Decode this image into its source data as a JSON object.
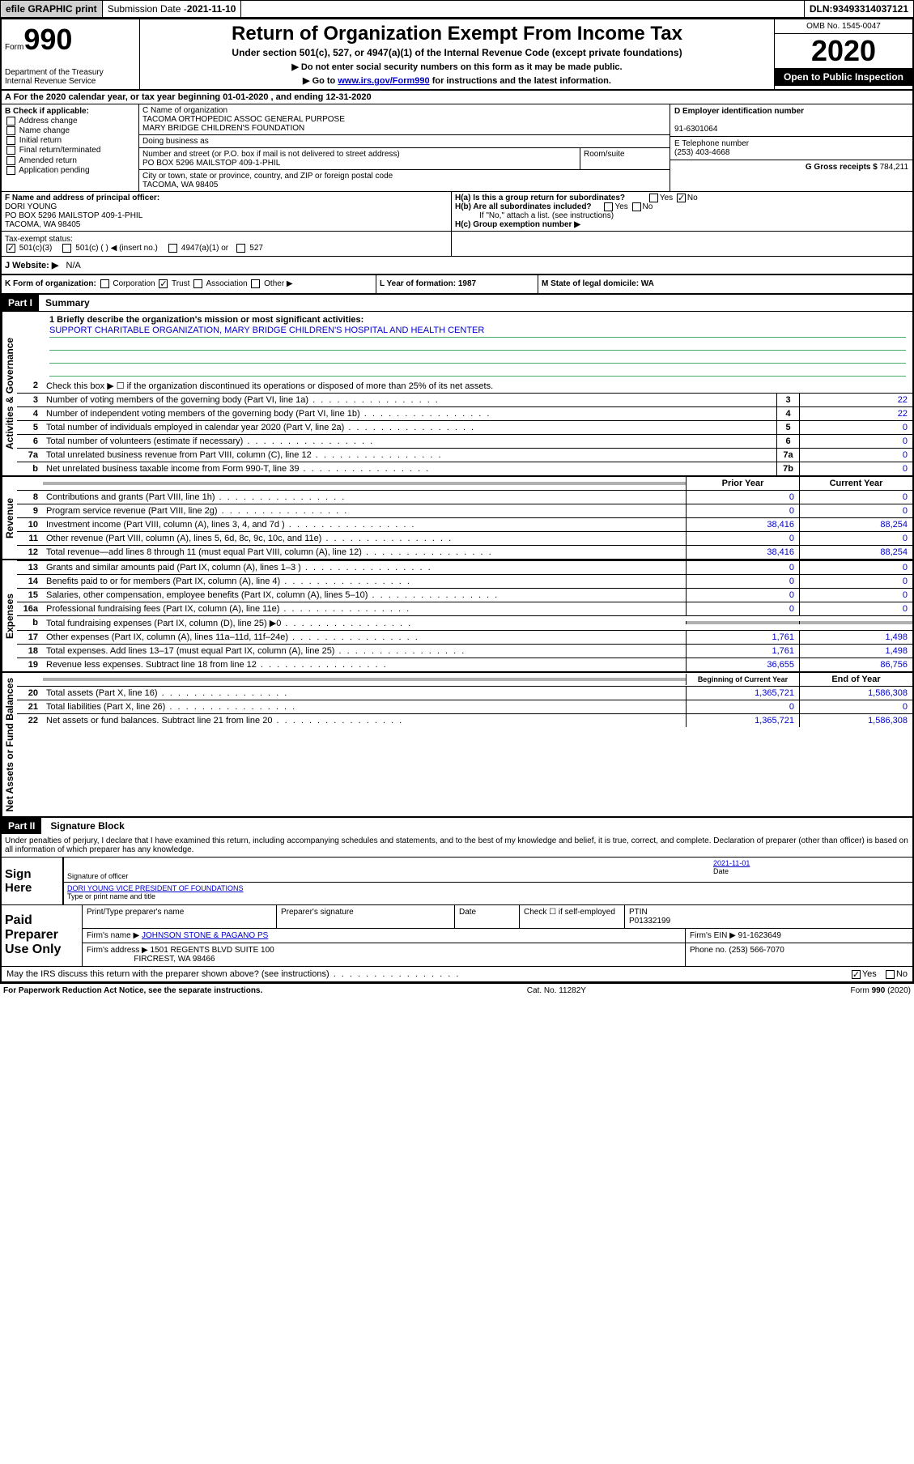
{
  "topbar": {
    "efile": "efile GRAPHIC print",
    "subdate_label": "Submission Date - ",
    "subdate": "2021-11-10",
    "dln_label": "DLN: ",
    "dln": "93493314037121"
  },
  "header": {
    "form_label": "Form",
    "form_num": "990",
    "dept": "Department of the Treasury\nInternal Revenue Service",
    "title": "Return of Organization Exempt From Income Tax",
    "subtitle": "Under section 501(c), 527, or 4947(a)(1) of the Internal Revenue Code (except private foundations)",
    "instr1": "▶ Do not enter social security numbers on this form as it may be made public.",
    "instr2_pre": "▶ Go to ",
    "instr2_link": "www.irs.gov/Form990",
    "instr2_post": " for instructions and the latest information.",
    "omb": "OMB No. 1545-0047",
    "year": "2020",
    "open": "Open to Public Inspection"
  },
  "tax_year": "A For the 2020 calendar year, or tax year beginning 01-01-2020    , and ending 12-31-2020",
  "section_b": {
    "label": "B Check if applicable:",
    "opts": [
      "Address change",
      "Name change",
      "Initial return",
      "Final return/terminated",
      "Amended return",
      "Application pending"
    ]
  },
  "section_c": {
    "name_label": "C Name of organization",
    "name1": "TACOMA ORTHOPEDIC ASSOC GENERAL PURPOSE",
    "name2": "MARY BRIDGE CHILDREN'S FOUNDATION",
    "dba": "Doing business as",
    "addr_label": "Number and street (or P.O. box if mail is not delivered to street address)",
    "room": "Room/suite",
    "addr": "PO BOX 5296 MAILSTOP 409-1-PHIL",
    "city_label": "City or town, state or province, country, and ZIP or foreign postal code",
    "city": "TACOMA, WA  98405"
  },
  "section_d": {
    "ein_label": "D Employer identification number",
    "ein": "91-6301064",
    "tel_label": "E Telephone number",
    "tel": "(253) 403-4668",
    "gross_label": "G Gross receipts $ ",
    "gross": "784,211"
  },
  "section_f": {
    "label": "F Name and address of principal officer:",
    "name": "DORI YOUNG",
    "addr1": "PO BOX 5296 MAILSTOP 409-1-PHIL",
    "addr2": "TACOMA, WA  98405"
  },
  "section_h": {
    "ha": "H(a)  Is this a group return for subordinates?",
    "hb": "H(b)  Are all subordinates included?",
    "hnote": "If \"No,\" attach a list. (see instructions)",
    "hc": "H(c)  Group exemption number ▶"
  },
  "tax_exempt": {
    "label": "Tax-exempt status:",
    "opt1": "501(c)(3)",
    "opt2": "501(c) (  ) ◀ (insert no.)",
    "opt3": "4947(a)(1) or",
    "opt4": "527"
  },
  "website": {
    "label": "J   Website: ▶",
    "value": "N/A"
  },
  "section_k": {
    "label": "K Form of organization:",
    "opts": [
      "Corporation",
      "Trust",
      "Association",
      "Other ▶"
    ],
    "l": "L Year of formation: 1987",
    "m": "M State of legal domicile: WA"
  },
  "part1": {
    "hdr": "Part I",
    "title": "Summary",
    "side_gov": "Activities & Governance",
    "side_rev": "Revenue",
    "side_exp": "Expenses",
    "side_net": "Net Assets or Fund Balances",
    "q1": "1   Briefly describe the organization's mission or most significant activities:",
    "mission": "SUPPORT CHARITABLE ORGANIZATION, MARY BRIDGE CHILDREN'S HOSPITAL AND HEALTH CENTER",
    "q2": "Check this box ▶ ☐  if the organization discontinued its operations or disposed of more than 25% of its net assets.",
    "lines_gov": [
      {
        "n": "3",
        "d": "Number of voting members of the governing body (Part VI, line 1a)",
        "b": "3",
        "v": "22"
      },
      {
        "n": "4",
        "d": "Number of independent voting members of the governing body (Part VI, line 1b)",
        "b": "4",
        "v": "22"
      },
      {
        "n": "5",
        "d": "Total number of individuals employed in calendar year 2020 (Part V, line 2a)",
        "b": "5",
        "v": "0"
      },
      {
        "n": "6",
        "d": "Total number of volunteers (estimate if necessary)",
        "b": "6",
        "v": "0"
      },
      {
        "n": "7a",
        "d": "Total unrelated business revenue from Part VIII, column (C), line 12",
        "b": "7a",
        "v": "0"
      },
      {
        "n": "b",
        "d": "Net unrelated business taxable income from Form 990-T, line 39",
        "b": "7b",
        "v": "0"
      }
    ],
    "col_prior": "Prior Year",
    "col_curr": "Current Year",
    "lines_rev": [
      {
        "n": "8",
        "d": "Contributions and grants (Part VIII, line 1h)",
        "p": "0",
        "c": "0"
      },
      {
        "n": "9",
        "d": "Program service revenue (Part VIII, line 2g)",
        "p": "0",
        "c": "0"
      },
      {
        "n": "10",
        "d": "Investment income (Part VIII, column (A), lines 3, 4, and 7d )",
        "p": "38,416",
        "c": "88,254"
      },
      {
        "n": "11",
        "d": "Other revenue (Part VIII, column (A), lines 5, 6d, 8c, 9c, 10c, and 11e)",
        "p": "0",
        "c": "0"
      },
      {
        "n": "12",
        "d": "Total revenue—add lines 8 through 11 (must equal Part VIII, column (A), line 12)",
        "p": "38,416",
        "c": "88,254"
      }
    ],
    "lines_exp": [
      {
        "n": "13",
        "d": "Grants and similar amounts paid (Part IX, column (A), lines 1–3 )",
        "p": "0",
        "c": "0"
      },
      {
        "n": "14",
        "d": "Benefits paid to or for members (Part IX, column (A), line 4)",
        "p": "0",
        "c": "0"
      },
      {
        "n": "15",
        "d": "Salaries, other compensation, employee benefits (Part IX, column (A), lines 5–10)",
        "p": "0",
        "c": "0"
      },
      {
        "n": "16a",
        "d": "Professional fundraising fees (Part IX, column (A), line 11e)",
        "p": "0",
        "c": "0"
      },
      {
        "n": "b",
        "d": "Total fundraising expenses (Part IX, column (D), line 25) ▶0",
        "p": "",
        "c": "",
        "shade": true
      },
      {
        "n": "17",
        "d": "Other expenses (Part IX, column (A), lines 11a–11d, 11f–24e)",
        "p": "1,761",
        "c": "1,498"
      },
      {
        "n": "18",
        "d": "Total expenses. Add lines 13–17 (must equal Part IX, column (A), line 25)",
        "p": "1,761",
        "c": "1,498"
      },
      {
        "n": "19",
        "d": "Revenue less expenses. Subtract line 18 from line 12",
        "p": "36,655",
        "c": "86,756"
      }
    ],
    "col_beg": "Beginning of Current Year",
    "col_end": "End of Year",
    "lines_net": [
      {
        "n": "20",
        "d": "Total assets (Part X, line 16)",
        "p": "1,365,721",
        "c": "1,586,308"
      },
      {
        "n": "21",
        "d": "Total liabilities (Part X, line 26)",
        "p": "0",
        "c": "0"
      },
      {
        "n": "22",
        "d": "Net assets or fund balances. Subtract line 21 from line 20",
        "p": "1,365,721",
        "c": "1,586,308"
      }
    ]
  },
  "part2": {
    "hdr": "Part II",
    "title": "Signature Block",
    "perjury": "Under penalties of perjury, I declare that I have examined this return, including accompanying schedules and statements, and to the best of my knowledge and belief, it is true, correct, and complete. Declaration of preparer (other than officer) is based on all information of which preparer has any knowledge.",
    "sign_here": "Sign Here",
    "sig_officer": "Signature of officer",
    "date_label": "Date",
    "date": "2021-11-01",
    "officer_name": "DORI YOUNG  VICE PRESIDENT OF FOUNDATIONS",
    "type_name": "Type or print name and title",
    "paid": "Paid Preparer Use Only",
    "prep_name_label": "Print/Type preparer's name",
    "prep_sig_label": "Preparer's signature",
    "check_self": "Check ☐  if self-employed",
    "ptin_label": "PTIN",
    "ptin": "P01332199",
    "firm_name_label": "Firm's name    ▶ ",
    "firm_name": "JOHNSON STONE & PAGANO PS",
    "firm_ein_label": "Firm's EIN ▶ ",
    "firm_ein": "91-1623649",
    "firm_addr_label": "Firm's address ▶ ",
    "firm_addr1": "1501 REGENTS BLVD SUITE 100",
    "firm_addr2": "FIRCREST, WA  98466",
    "phone_label": "Phone no. ",
    "phone": "(253) 566-7070",
    "discuss": "May the IRS discuss this return with the preparer shown above? (see instructions)"
  },
  "footer": {
    "pra": "For Paperwork Reduction Act Notice, see the separate instructions.",
    "cat": "Cat. No. 11282Y",
    "form": "Form 990 (2020)"
  }
}
